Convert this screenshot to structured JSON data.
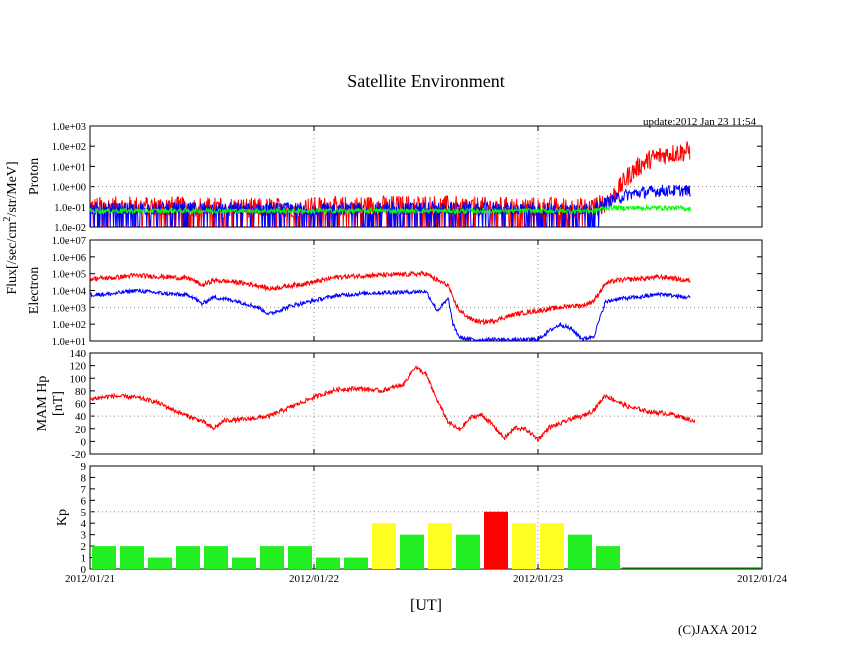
{
  "chart_data": {
    "title": "Satellite Environment",
    "update_text": "update:2012 Jan 23 11:54",
    "copyright": "(C)JAXA 2012",
    "xlabel": "[UT]",
    "x_ticks": [
      "2012/01/21",
      "2012/01/22",
      "2012/01/23",
      "2012/01/24"
    ],
    "x_range_days": [
      0,
      3
    ],
    "shared_ylabel": "Flux[/sec/cm2/str/MeV]",
    "panels": [
      {
        "id": "proton",
        "type": "line",
        "ylabel": "Proton",
        "yscale": "log",
        "ylim_log10": [
          -2,
          3
        ],
        "y_tick_labels": [
          "1.0e-02",
          "1.0e-01",
          "1.0e+00",
          "1.0e+01",
          "1.0e+02",
          "1.0e+03"
        ],
        "series": [
          {
            "name": "proton-high",
            "color": "#ff0000",
            "x": [
              0.0,
              0.25,
              0.5,
              0.75,
              1.0,
              1.25,
              1.5,
              1.75,
              2.0,
              2.2,
              2.25,
              2.3,
              2.35,
              2.4,
              2.45,
              2.5,
              2.55,
              2.6,
              2.65,
              2.68
            ],
            "log10": [
              -1.0,
              -0.95,
              -1.0,
              -1.05,
              -1.0,
              -0.95,
              -0.9,
              -1.0,
              -1.0,
              -1.05,
              -1.0,
              -0.8,
              -0.3,
              0.5,
              1.0,
              1.35,
              1.55,
              1.65,
              1.72,
              1.8
            ],
            "noise": 0.5,
            "spikes": true
          },
          {
            "name": "proton-mid",
            "color": "#0000ff",
            "x": [
              0.0,
              0.5,
              1.0,
              1.5,
              2.0,
              2.2,
              2.25,
              2.3,
              2.35,
              2.4,
              2.45,
              2.5,
              2.55,
              2.6,
              2.65,
              2.68
            ],
            "log10": [
              -1.1,
              -1.05,
              -1.1,
              -1.05,
              -1.1,
              -1.1,
              -1.05,
              -0.8,
              -0.6,
              -0.4,
              -0.3,
              -0.25,
              -0.2,
              -0.2,
              -0.2,
              -0.2
            ],
            "noise": 0.3,
            "spikes": true
          },
          {
            "name": "proton-low",
            "color": "#00ff00",
            "x": [
              0.0,
              0.5,
              1.0,
              1.5,
              2.0,
              2.25,
              2.3,
              2.4,
              2.5,
              2.6,
              2.68
            ],
            "log10": [
              -1.2,
              -1.2,
              -1.2,
              -1.2,
              -1.2,
              -1.2,
              -1.05,
              -1.05,
              -1.05,
              -1.05,
              -1.1
            ],
            "noise": 0.12,
            "spikes": false
          }
        ]
      },
      {
        "id": "electron",
        "type": "line",
        "ylabel": "Electron",
        "yscale": "log",
        "ylim_log10": [
          1,
          7
        ],
        "y_tick_labels": [
          "1.0e+01",
          "1.0e+02",
          "1.0e+03",
          "1.0e+04",
          "1.0e+05",
          "1.0e+06",
          "1.0e+07"
        ],
        "series": [
          {
            "name": "electron-high",
            "color": "#ff0000",
            "x": [
              0.0,
              0.1,
              0.2,
              0.35,
              0.45,
              0.5,
              0.55,
              0.65,
              0.75,
              0.8,
              0.9,
              1.0,
              1.1,
              1.25,
              1.4,
              1.5,
              1.55,
              1.6,
              1.62,
              1.65,
              1.7,
              1.75,
              1.8,
              1.9,
              2.0,
              2.1,
              2.15,
              2.2,
              2.25,
              2.3,
              2.35,
              2.45,
              2.55,
              2.6,
              2.65,
              2.68
            ],
            "log10": [
              4.7,
              4.75,
              4.9,
              4.8,
              4.7,
              4.3,
              4.6,
              4.5,
              4.3,
              4.1,
              4.3,
              4.5,
              4.8,
              4.9,
              4.95,
              5.0,
              4.6,
              4.3,
              3.5,
              2.8,
              2.3,
              2.1,
              2.2,
              2.6,
              2.8,
              3.0,
              3.1,
              3.1,
              3.4,
              4.4,
              4.6,
              4.7,
              4.8,
              4.75,
              4.6,
              4.6
            ],
            "noise": 0.14
          },
          {
            "name": "electron-low",
            "color": "#0000ff",
            "x": [
              0.0,
              0.1,
              0.2,
              0.35,
              0.45,
              0.5,
              0.55,
              0.65,
              0.75,
              0.8,
              0.9,
              1.0,
              1.1,
              1.25,
              1.4,
              1.5,
              1.55,
              1.6,
              1.62,
              1.65,
              1.7,
              1.75,
              1.8,
              1.9,
              2.0,
              2.05,
              2.1,
              2.15,
              2.2,
              2.25,
              2.3,
              2.35,
              2.45,
              2.55,
              2.6,
              2.65,
              2.68
            ],
            "log10": [
              3.75,
              3.8,
              4.0,
              3.8,
              3.7,
              3.2,
              3.6,
              3.4,
              3.0,
              2.6,
              3.1,
              3.4,
              3.7,
              3.85,
              3.9,
              3.95,
              2.8,
              3.5,
              2.0,
              1.2,
              1.1,
              1.05,
              1.1,
              1.05,
              1.1,
              1.6,
              2.0,
              1.7,
              1.1,
              1.3,
              3.3,
              3.5,
              3.6,
              3.8,
              3.7,
              3.6,
              3.6
            ],
            "noise": 0.12
          }
        ]
      },
      {
        "id": "mam-hp",
        "type": "line",
        "ylabel_line1": "MAM Hp",
        "ylabel_line2": "[nT]",
        "yscale": "linear",
        "ylim": [
          -20,
          140
        ],
        "y_tick_labels": [
          "-20",
          "0",
          "20",
          "40",
          "60",
          "80",
          "100",
          "120",
          "140"
        ],
        "series": [
          {
            "name": "hp",
            "color": "#ff0000",
            "x": [
              0.0,
              0.1,
              0.2,
              0.3,
              0.4,
              0.5,
              0.55,
              0.6,
              0.7,
              0.8,
              0.9,
              1.0,
              1.1,
              1.2,
              1.3,
              1.4,
              1.45,
              1.5,
              1.55,
              1.6,
              1.65,
              1.7,
              1.75,
              1.8,
              1.85,
              1.9,
              1.95,
              2.0,
              2.05,
              2.1,
              2.15,
              2.2,
              2.25,
              2.3,
              2.4,
              2.5,
              2.6,
              2.7
            ],
            "y": [
              67,
              72,
              70,
              62,
              45,
              32,
              20,
              33,
              35,
              40,
              55,
              70,
              82,
              84,
              80,
              90,
              118,
              106,
              65,
              30,
              18,
              38,
              42,
              25,
              5,
              22,
              18,
              3,
              22,
              28,
              36,
              40,
              50,
              73,
              55,
              47,
              43,
              32
            ],
            "noise": 3.5
          }
        ]
      },
      {
        "id": "kp",
        "type": "bar",
        "ylabel": "Kp",
        "ylim": [
          0,
          9
        ],
        "y_tick_labels": [
          "0",
          "1",
          "2",
          "3",
          "4",
          "5",
          "6",
          "7",
          "8",
          "9"
        ],
        "bin_hours": 3,
        "values": [
          2,
          2,
          1,
          2,
          2,
          1,
          2,
          2,
          1,
          1,
          4,
          3,
          4,
          3,
          5,
          4,
          4,
          3,
          2
        ],
        "color_low": "#22ee22",
        "color_mid": "#ffff22",
        "color_high": "#ff0000",
        "tail_line_color": "#00aa00"
      }
    ]
  }
}
